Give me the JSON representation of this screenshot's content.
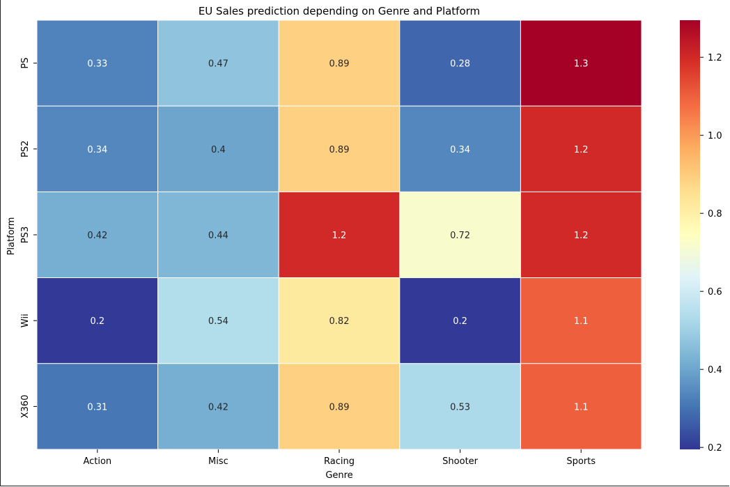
{
  "chart_data": {
    "type": "heatmap",
    "title": "EU Sales prediction depending on Genre and Platform",
    "xlabel": "Genre",
    "ylabel": "Platform",
    "x_categories": [
      "Action",
      "Misc",
      "Racing",
      "Shooter",
      "Sports"
    ],
    "y_categories": [
      "PS",
      "PS2",
      "PS3",
      "Wii",
      "X360"
    ],
    "values": [
      [
        0.33,
        0.47,
        0.89,
        0.28,
        1.3
      ],
      [
        0.34,
        0.4,
        0.89,
        0.34,
        1.2
      ],
      [
        0.42,
        0.44,
        1.2,
        0.72,
        1.2
      ],
      [
        0.2,
        0.54,
        0.82,
        0.2,
        1.1
      ],
      [
        0.31,
        0.42,
        0.89,
        0.53,
        1.1
      ]
    ],
    "annotations": [
      [
        "0.33",
        "0.47",
        "0.89",
        "0.28",
        "1.3"
      ],
      [
        "0.34",
        "0.4",
        "0.89",
        "0.34",
        "1.2"
      ],
      [
        "0.42",
        "0.44",
        "1.2",
        "0.72",
        "1.2"
      ],
      [
        "0.2",
        "0.54",
        "0.82",
        "0.2",
        "1.1"
      ],
      [
        "0.31",
        "0.42",
        "0.89",
        "0.53",
        "1.1"
      ]
    ],
    "colormap": "RdYlBu_r",
    "colorbar": {
      "range": [
        0.195,
        1.295
      ],
      "ticks": [
        0.2,
        0.4,
        0.6,
        0.8,
        1.0,
        1.2
      ],
      "tick_labels": [
        "0.2",
        "0.4",
        "0.6",
        "0.8",
        "1.0",
        "1.2"
      ]
    },
    "cell_border_color": "#ffffff"
  }
}
